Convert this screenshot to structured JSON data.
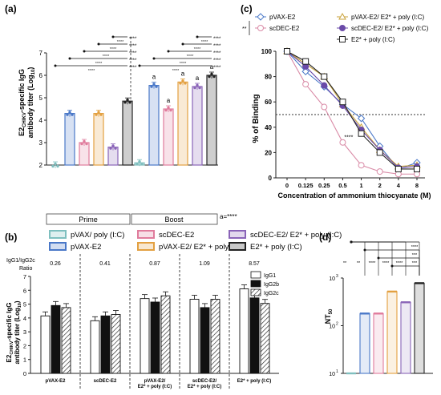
{
  "chart_data": [
    {
      "panel": "(a)",
      "type": "bar",
      "ylabel_main": "E2",
      "ylabel_sub": "CHIKV",
      "ylabel_rest": "-specific IgG",
      "ylabel_line2": "antibody titer (Log",
      "ylabel_sub2": "10",
      "ylabel_close": ")",
      "ylim": [
        2,
        7
      ],
      "yticks": [
        "2",
        "3",
        "4",
        "5",
        "6",
        "7"
      ],
      "groups": [
        "Prime",
        "Boost"
      ],
      "series": [
        {
          "name": "pVAX/ poly (I:C)",
          "color": "#7fbfbf",
          "values": [
            2.0,
            2.1
          ]
        },
        {
          "name": "pVAX-E2",
          "color": "#4a78c8",
          "values": [
            4.3,
            5.55
          ]
        },
        {
          "name": "scDEC-E2",
          "color": "#e07b9c",
          "values": [
            3.0,
            4.5
          ]
        },
        {
          "name": "pVAX-E2/ E2* + poly (I:C)",
          "color": "#e3a040",
          "values": [
            4.3,
            5.7
          ]
        },
        {
          "name": "scDEC-E2/ E2* + poly (I:C)",
          "color": "#8a64b8",
          "values": [
            2.8,
            5.5
          ]
        },
        {
          "name": "E2* + poly (I:C)",
          "color": "#222222",
          "values": [
            4.85,
            6.0
          ]
        }
      ],
      "bar_labels": [
        "a",
        "a",
        "a",
        "a",
        "a"
      ],
      "sig": "****",
      "note": "a=****"
    },
    {
      "panel": "(b)",
      "type": "bar",
      "ratio_label_1": "IgG1/IgG2c",
      "ratio_label_2": "Ratio",
      "ratios": [
        "0.26",
        "0.41",
        "0.87",
        "1.09",
        "8.57"
      ],
      "ylabel_main": "E2",
      "ylabel_sub": "CHIKV",
      "ylabel_rest": "-specific IgG",
      "ylabel_line2": "antibody titer (Log",
      "ylabel_sub2": "10",
      "ylabel_close": ")",
      "ylim": [
        0,
        7
      ],
      "yticks": [
        "0",
        "1",
        "2",
        "3",
        "4",
        "5",
        "6",
        "7"
      ],
      "categories": [
        "pVAX-E2",
        "scDEC-E2",
        "pVAX-E2/",
        "scDEC-E2/",
        "E2* + poly (I:C)"
      ],
      "categories_line2": [
        "",
        "",
        "E2* + poly (I:C)",
        "E2* + poly (I:C)",
        ""
      ],
      "series": [
        {
          "name": "IgG1",
          "values": [
            4.15,
            3.8,
            5.4,
            5.35,
            6.1
          ]
        },
        {
          "name": "IgG2b",
          "values": [
            4.9,
            4.15,
            5.15,
            4.75,
            5.45
          ]
        },
        {
          "name": "IgG2c",
          "values": [
            4.75,
            4.25,
            5.6,
            5.35,
            5.05
          ]
        }
      ]
    },
    {
      "panel": "(c)",
      "type": "line",
      "ylabel": "% of Binding",
      "xlabel": "Concentration of ammonium thiocyanate (M)",
      "x": [
        "0",
        "0.125",
        "0.25",
        "0.5",
        "1",
        "2",
        "4",
        "8"
      ],
      "ylim": [
        0,
        100
      ],
      "yticks": [
        "0",
        "20",
        "40",
        "60",
        "80",
        "100"
      ],
      "reference_line": 50,
      "sig": "****",
      "sig_bracket": "**",
      "series": [
        {
          "name": "pVAX-E2",
          "color": "#4a78c8",
          "marker": "diamond",
          "values": [
            100,
            84,
            72,
            58,
            47,
            25,
            7,
            12
          ]
        },
        {
          "name": "scDEC-E2",
          "color": "#d98aa6",
          "marker": "circle",
          "values": [
            100,
            74,
            56,
            28,
            10,
            5,
            3,
            3
          ]
        },
        {
          "name": "pVAX-E2/ E2* + poly (I:C)",
          "color": "#c9a23a",
          "marker": "triangle",
          "values": [
            100,
            90,
            80,
            58,
            40,
            22,
            9,
            10
          ]
        },
        {
          "name": "scDEC-E2/ E2* + poly (I:C)",
          "color": "#6a4aa8",
          "marker": "circle",
          "values": [
            100,
            88,
            73,
            57,
            38,
            22,
            8,
            9
          ]
        },
        {
          "name": "E2* + poly (I:C)",
          "color": "#222222",
          "marker": "square",
          "values": [
            100,
            92,
            80,
            60,
            35,
            20,
            7,
            7
          ]
        }
      ]
    },
    {
      "panel": "(d)",
      "type": "bar",
      "ylabel": "NT",
      "ylabel_sub": "50",
      "yscale": "log",
      "ylim": [
        10,
        1000
      ],
      "ytick_base": "10",
      "ytick_exps": [
        "1",
        "2",
        "3"
      ],
      "series": [
        {
          "name": "pVAX/ poly (I:C)",
          "color": "#7fbfbf",
          "value": 10
        },
        {
          "name": "pVAX-E2",
          "color": "#4a78c8",
          "value": 180
        },
        {
          "name": "scDEC-E2",
          "color": "#e07b9c",
          "value": 180
        },
        {
          "name": "pVAX-E2/ E2* + poly (I:C)",
          "color": "#e3a040",
          "value": 520
        },
        {
          "name": "scDEC-E2/ E2* + poly (I:C)",
          "color": "#8a64b8",
          "value": 310
        },
        {
          "name": "E2* + poly (I:C)",
          "color": "#222222",
          "value": 780
        }
      ],
      "sig_labels": [
        "**",
        "**",
        "****",
        "****",
        "****",
        "****",
        "***",
        "***"
      ]
    }
  ],
  "legend": [
    {
      "name": "pVAX/ poly (I:C)",
      "color": "#7fbfbf"
    },
    {
      "name": "scDEC-E2",
      "color": "#e07b9c"
    },
    {
      "name": "scDEC-E2/ E2* + poly (I:C)",
      "color": "#8a64b8"
    },
    {
      "name": "pVAX-E2",
      "color": "#4a78c8"
    },
    {
      "name": "pVAX-E2/ E2* + poly (I:C)",
      "color": "#e3a040"
    },
    {
      "name": "E2* + poly (I:C)",
      "color": "#222222"
    }
  ]
}
